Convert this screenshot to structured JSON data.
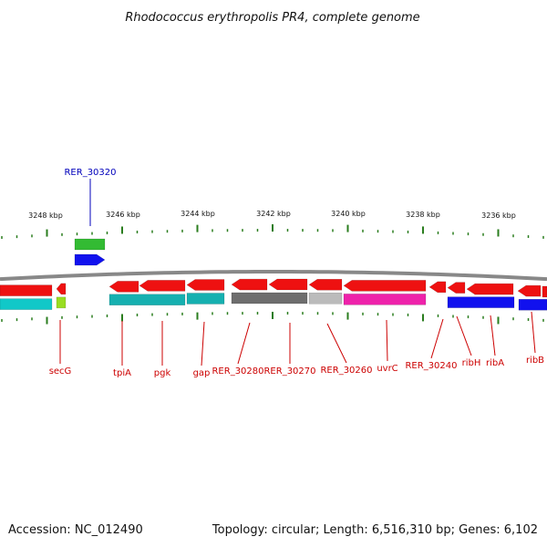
{
  "title": "Rhodococcus erythropolis PR4, complete genome",
  "footer": {
    "accession": "Accession: NC_012490",
    "summary": "Topology: circular; Length: 6,516,310 bp; Genes: 6,102"
  },
  "scale": {
    "labels": [
      "3248 kbp",
      "3246 kbp",
      "3244 kbp",
      "3242 kbp",
      "3240 kbp",
      "3238 kbp",
      "3236 kbp"
    ],
    "tick_color": "#2a7d1e"
  },
  "colors": {
    "gene": "#ee1111",
    "backbone": "#888888",
    "label_red": "#cc0000",
    "label_blue": "#0000bb",
    "cyan": "#11c8c8",
    "teal": "#16b0b0",
    "lime": "#99dd22",
    "dark_gray": "#6e6e6e",
    "light_gray": "#bbbbbb",
    "magenta": "#ee22aa",
    "blue": "#1111ee",
    "green": "#33bb33"
  },
  "gene_labels": [
    {
      "text": "RER_30320",
      "color": "#0000bb"
    },
    {
      "text": "secG",
      "color": "#cc0000"
    },
    {
      "text": "tpiA",
      "color": "#cc0000"
    },
    {
      "text": "pgk",
      "color": "#cc0000"
    },
    {
      "text": "gap",
      "color": "#cc0000"
    },
    {
      "text": "RER_30280",
      "color": "#cc0000"
    },
    {
      "text": "RER_30270",
      "color": "#cc0000"
    },
    {
      "text": "RER_30260",
      "color": "#cc0000"
    },
    {
      "text": "uvrC",
      "color": "#cc0000"
    },
    {
      "text": "RER_30240",
      "color": "#cc0000"
    },
    {
      "text": "ribH",
      "color": "#cc0000"
    },
    {
      "text": "ribA",
      "color": "#cc0000"
    },
    {
      "text": "ribB",
      "color": "#cc0000"
    }
  ]
}
